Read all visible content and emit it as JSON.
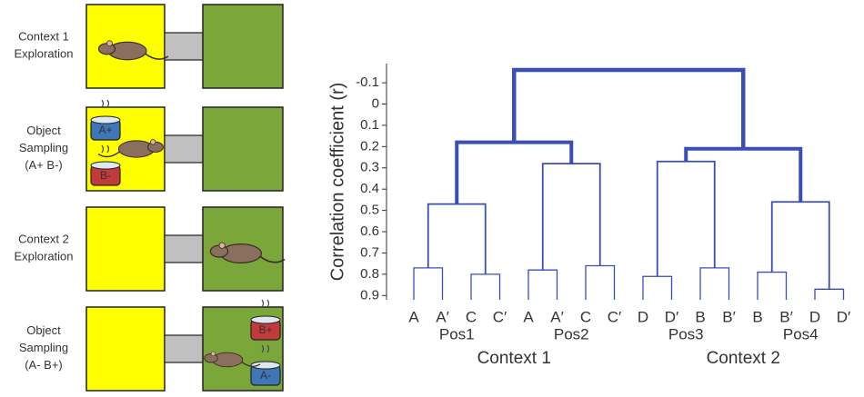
{
  "panel_a": {
    "rows": [
      {
        "label": [
          "Context 1",
          "Exploration"
        ]
      },
      {
        "label": [
          "Object",
          "Sampling",
          "(A+ B-)"
        ],
        "cups": [
          "A+",
          "B-"
        ]
      },
      {
        "label": [
          "Context 2",
          "Exploration"
        ]
      },
      {
        "label": [
          "Object",
          "Sampling",
          "(A- B+)"
        ],
        "cups": [
          "B+",
          "A-"
        ]
      }
    ]
  },
  "chart_data": {
    "type": "dendrogram",
    "y_label": "Correlation coefficient (r)",
    "color": "#3a4fb5",
    "ylim": [
      -0.19,
      0.92
    ],
    "yticks": [
      -0.1,
      0,
      0.1,
      0.2,
      0.3,
      0.4,
      0.5,
      0.6,
      0.7,
      0.8,
      0.9
    ],
    "leaves": [
      "A",
      "A′",
      "C",
      "C′",
      "A",
      "A′",
      "C",
      "C′",
      "D",
      "D′",
      "B",
      "B′",
      "B",
      "B′",
      "D",
      "D′"
    ],
    "positions": [
      "Pos1",
      "Pos2",
      "Pos3",
      "Pos4"
    ],
    "contexts": [
      "Context 1",
      "Context 2"
    ],
    "pair_heights": [
      0.77,
      0.8,
      0.78,
      0.76,
      0.81,
      0.77,
      0.79,
      0.87
    ],
    "position_heights": [
      0.47,
      0.28,
      0.27,
      0.46
    ],
    "context_heights": [
      0.18,
      0.21
    ],
    "root_height": -0.16
  }
}
